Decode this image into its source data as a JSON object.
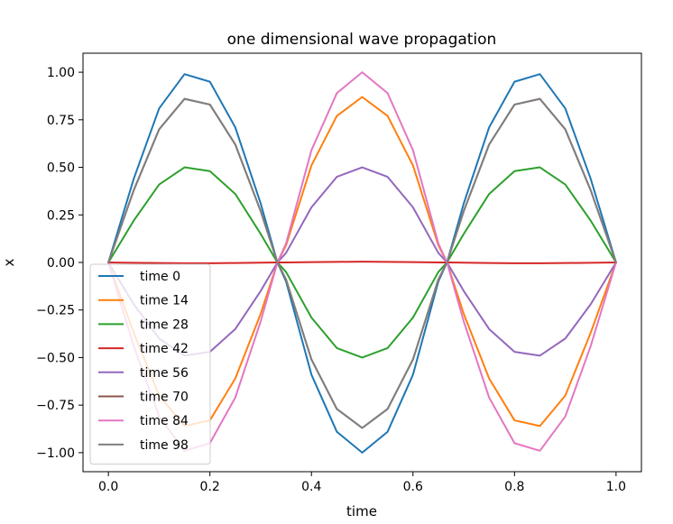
{
  "chart_data": {
    "type": "line",
    "title": "one dimensional wave propagation",
    "xlabel": "time",
    "ylabel": "x",
    "xlim": [
      -0.05,
      1.05
    ],
    "ylim": [
      -1.1,
      1.1
    ],
    "xticks": [
      "0.0",
      "0.2",
      "0.4",
      "0.6",
      "0.8",
      "1.0"
    ],
    "yticks": [
      "1.00",
      "0.75",
      "0.50",
      "0.25",
      "0.00",
      "−0.25",
      "−0.50",
      "−0.75",
      "−1.00"
    ],
    "grid": false,
    "legend_position": "lower-left",
    "x": [
      0.0,
      0.05,
      0.1,
      0.15,
      0.2,
      0.25,
      0.3,
      0.333,
      0.35,
      0.4,
      0.45,
      0.5,
      0.55,
      0.6,
      0.65,
      0.667,
      0.7,
      0.75,
      0.8,
      0.85,
      0.9,
      0.95,
      1.0
    ],
    "series": [
      {
        "name": "time 0",
        "color": "#1f77b4",
        "values": [
          0.0,
          0.44,
          0.81,
          0.99,
          0.95,
          0.71,
          0.31,
          0.0,
          -0.1,
          -0.59,
          -0.89,
          -1.0,
          -0.89,
          -0.59,
          -0.1,
          0.0,
          0.31,
          0.71,
          0.95,
          0.99,
          0.81,
          0.44,
          0.0
        ]
      },
      {
        "name": "time 14",
        "color": "#ff7f0e",
        "values": [
          0.0,
          -0.37,
          -0.7,
          -0.86,
          -0.83,
          -0.61,
          -0.27,
          0.0,
          0.09,
          0.51,
          0.77,
          0.87,
          0.77,
          0.51,
          0.09,
          0.0,
          -0.27,
          -0.61,
          -0.83,
          -0.86,
          -0.7,
          -0.37,
          0.0
        ]
      },
      {
        "name": "time 28",
        "color": "#2ca02c",
        "values": [
          0.0,
          0.22,
          0.41,
          0.5,
          0.48,
          0.36,
          0.15,
          0.0,
          -0.05,
          -0.29,
          -0.45,
          -0.5,
          -0.45,
          -0.29,
          -0.05,
          0.0,
          0.15,
          0.36,
          0.48,
          0.5,
          0.41,
          0.22,
          0.0
        ]
      },
      {
        "name": "time 42",
        "color": "#d62728",
        "values": [
          0.0,
          -0.002,
          -0.003,
          -0.004,
          -0.004,
          -0.003,
          -0.001,
          0.0,
          0.0,
          0.002,
          0.003,
          0.004,
          0.003,
          0.002,
          0.0,
          0.0,
          -0.001,
          -0.003,
          -0.004,
          -0.004,
          -0.003,
          -0.002,
          0.0
        ]
      },
      {
        "name": "time 56",
        "color": "#9467bd",
        "values": [
          0.0,
          -0.22,
          -0.4,
          -0.49,
          -0.47,
          -0.35,
          -0.15,
          0.0,
          0.05,
          0.29,
          0.45,
          0.5,
          0.45,
          0.29,
          0.05,
          0.0,
          -0.15,
          -0.35,
          -0.47,
          -0.49,
          -0.4,
          -0.22,
          0.0
        ]
      },
      {
        "name": "time 70",
        "color": "#8c564b",
        "values": [
          0.0,
          0.38,
          0.7,
          0.86,
          0.83,
          0.62,
          0.27,
          0.0,
          -0.09,
          -0.51,
          -0.77,
          -0.87,
          -0.77,
          -0.51,
          -0.09,
          0.0,
          0.27,
          0.62,
          0.83,
          0.86,
          0.7,
          0.38,
          0.0
        ]
      },
      {
        "name": "time 84",
        "color": "#e377c2",
        "values": [
          0.0,
          -0.44,
          -0.81,
          -0.99,
          -0.95,
          -0.71,
          -0.31,
          0.0,
          0.1,
          0.59,
          0.89,
          1.0,
          0.89,
          0.59,
          0.1,
          0.0,
          -0.31,
          -0.71,
          -0.95,
          -0.99,
          -0.81,
          -0.44,
          0.0
        ]
      },
      {
        "name": "time 98",
        "color": "#7f7f7f",
        "values": [
          0.0,
          0.38,
          0.7,
          0.86,
          0.83,
          0.62,
          0.27,
          0.0,
          -0.09,
          -0.51,
          -0.77,
          -0.87,
          -0.77,
          -0.51,
          -0.09,
          0.0,
          0.27,
          0.62,
          0.83,
          0.86,
          0.7,
          0.38,
          0.0
        ]
      }
    ]
  }
}
